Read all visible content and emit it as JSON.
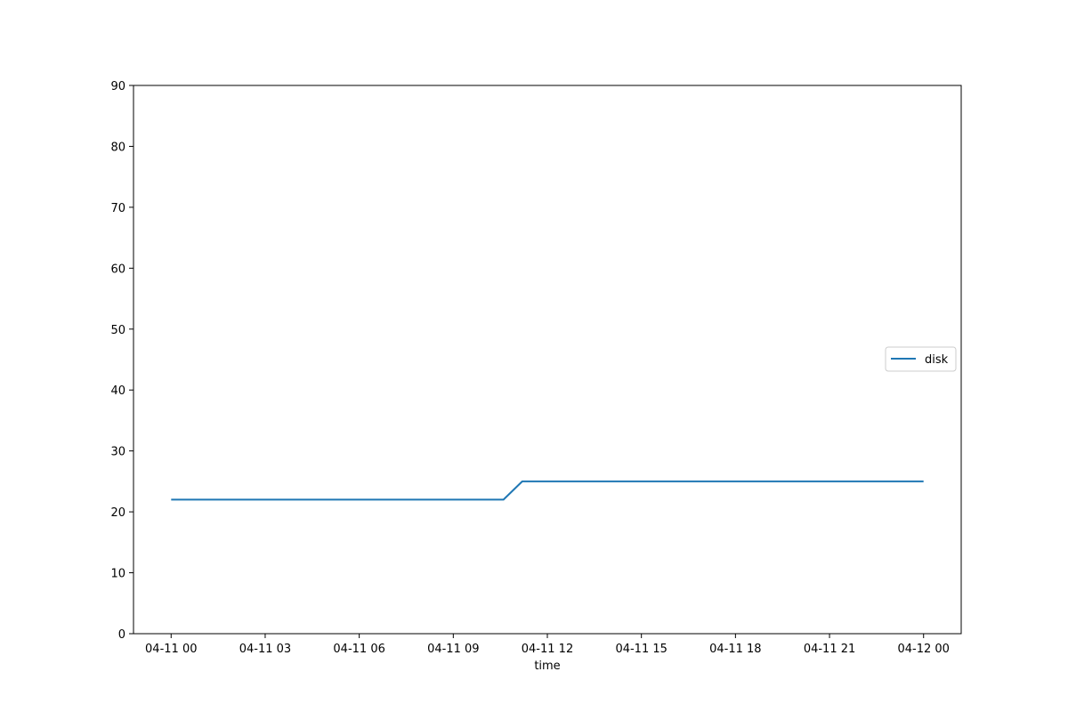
{
  "chart_data": {
    "type": "line",
    "title": "",
    "xlabel": "time",
    "ylabel": "",
    "x_ticks": [
      "04-11 00",
      "04-11 03",
      "04-11 06",
      "04-11 09",
      "04-11 12",
      "04-11 15",
      "04-11 18",
      "04-11 21",
      "04-12 00"
    ],
    "y_ticks": [
      "0",
      "10",
      "20",
      "30",
      "40",
      "50",
      "60",
      "70",
      "80",
      "90"
    ],
    "xlim": [
      "04-10 22:48",
      "04-12 01:12"
    ],
    "ylim": [
      0,
      90
    ],
    "grid": false,
    "legend_position": "center-right",
    "series": [
      {
        "name": "disk",
        "color": "#1f77b4",
        "x": [
          "04-11 00:00",
          "04-11 10:36",
          "04-11 11:12",
          "04-12 00:00"
        ],
        "y": [
          22,
          22,
          25,
          25
        ]
      }
    ]
  }
}
